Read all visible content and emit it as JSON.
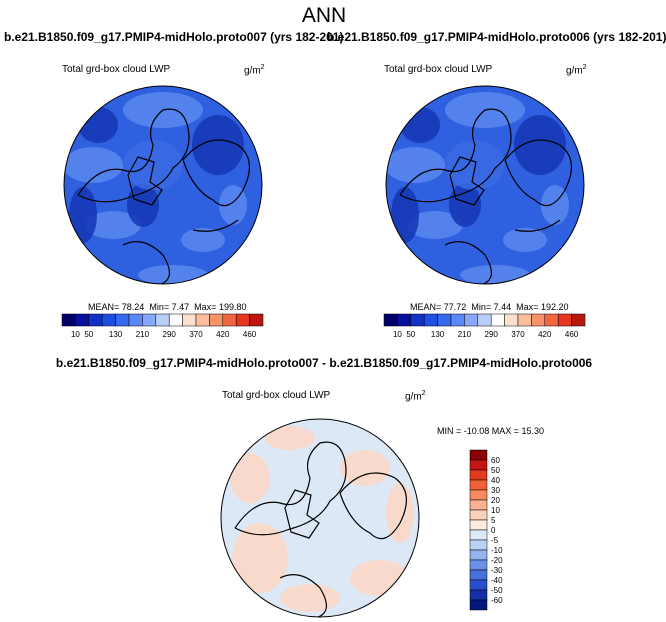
{
  "title": "ANN",
  "colors": {
    "polar_base": "#2e60df",
    "polar_light": "#5a88ee",
    "polar_dark": "#1436b4",
    "diff_base": "#dde8f7",
    "diff_warm": "#fbd8c6"
  },
  "chart_data": [
    {
      "type": "heatmap",
      "projection": "north-polar-stereographic",
      "title": "b.e21.B1850.f09_g17.PMIP4-midHolo.proto007 (yrs 182-201)",
      "variable": "Total grd-box cloud LWP",
      "units": "g/m",
      "units_sup": "2",
      "stats": {
        "mean_label": "MEAN=",
        "mean": "78.24",
        "min_label": "Min=",
        "min": "7.47",
        "max_label": "Max=",
        "max": "199.80"
      },
      "colorbar": {
        "orientation": "horizontal",
        "levels": [
          10,
          50,
          90,
          130,
          170,
          210,
          250,
          290,
          330,
          370,
          400,
          420,
          440,
          460
        ],
        "tick_labels": [
          "10",
          "50",
          "130",
          "210",
          "290",
          "370",
          "420",
          "460"
        ],
        "colors": [
          "#00006a",
          "#08119c",
          "#1030c8",
          "#1d4fe3",
          "#3669ef",
          "#5a88f5",
          "#86a8f7",
          "#b8cdf8",
          "#ffffff",
          "#fce0cc",
          "#fbbe9c",
          "#f79168",
          "#f26642",
          "#e63620",
          "#b81710"
        ]
      }
    },
    {
      "type": "heatmap",
      "projection": "north-polar-stereographic",
      "title": "b.e21.B1850.f09_g17.PMIP4-midHolo.proto006 (yrs 182-201)",
      "variable": "Total grd-box cloud LWP",
      "units": "g/m",
      "units_sup": "2",
      "stats": {
        "mean_label": "MEAN=",
        "mean": "77.72",
        "min_label": "Min=",
        "min": "7.44",
        "max_label": "Max=",
        "max": "192.20"
      },
      "colorbar": {
        "orientation": "horizontal",
        "levels": [
          10,
          50,
          90,
          130,
          170,
          210,
          250,
          290,
          330,
          370,
          400,
          420,
          440,
          460
        ],
        "tick_labels": [
          "10",
          "50",
          "130",
          "210",
          "290",
          "370",
          "420",
          "460"
        ],
        "colors": [
          "#00006a",
          "#08119c",
          "#1030c8",
          "#1d4fe3",
          "#3669ef",
          "#5a88f5",
          "#86a8f7",
          "#b8cdf8",
          "#ffffff",
          "#fce0cc",
          "#fbbe9c",
          "#f79168",
          "#f26642",
          "#e63620",
          "#b81710"
        ]
      }
    },
    {
      "type": "heatmap",
      "projection": "north-polar-stereographic",
      "title": "b.e21.B1850.f09_g17.PMIP4-midHolo.proto007 - b.e21.B1850.f09_g17.PMIP4-midHolo.proto006",
      "variable": "Total grd-box cloud LWP",
      "units": "g/m",
      "units_sup": "2",
      "stats_text": "MIN = -10.08 MAX =  15.30",
      "colorbar": {
        "orientation": "vertical",
        "levels": [
          60,
          50,
          40,
          30,
          20,
          10,
          5,
          0,
          -5,
          -10,
          -20,
          -30,
          -40,
          -50,
          -60
        ],
        "tick_labels": [
          "60",
          "50",
          "40",
          "30",
          "20",
          "10",
          "5",
          "0",
          "-5",
          "-10",
          "-20",
          "-30",
          "-40",
          "-50",
          "-60"
        ],
        "colors": [
          "#8b0000",
          "#c41414",
          "#e23a1e",
          "#f2603a",
          "#f78a62",
          "#f9b290",
          "#fbd3bd",
          "#fcece0",
          "#dfeaf8",
          "#bcd2f4",
          "#93b3ef",
          "#6a91e8",
          "#4670de",
          "#2a4fcc",
          "#1432a8",
          "#00197a"
        ]
      }
    }
  ]
}
